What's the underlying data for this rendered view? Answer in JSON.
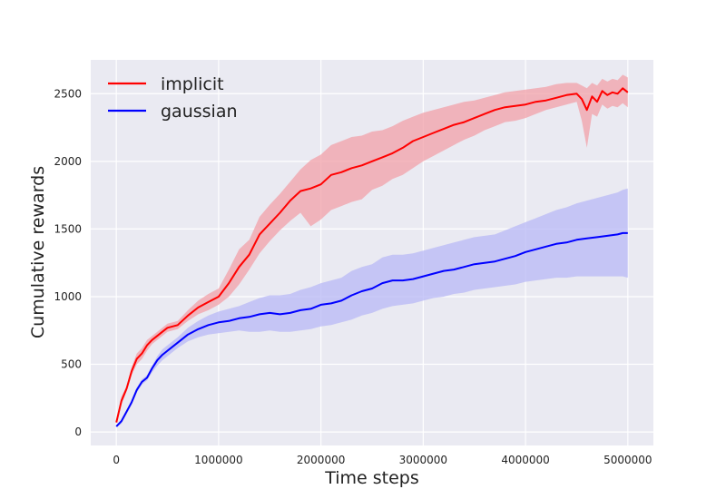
{
  "chart_data": {
    "type": "line",
    "title": "",
    "xlabel": "Time steps",
    "ylabel": "Cumulative rewards",
    "xlim": [
      -250000,
      5250000
    ],
    "ylim": [
      -100,
      2750
    ],
    "xticks": [
      0,
      1000000,
      2000000,
      3000000,
      4000000,
      5000000
    ],
    "xtick_labels": [
      "0",
      "1000000",
      "2000000",
      "3000000",
      "4000000",
      "5000000"
    ],
    "yticks": [
      0,
      500,
      1000,
      1500,
      2000,
      2500
    ],
    "ytick_labels": [
      "0",
      "500",
      "1000",
      "1500",
      "2000",
      "2500"
    ],
    "grid": true,
    "legend_position": "upper-left",
    "series": [
      {
        "name": "implicit",
        "color": "#ff0000",
        "band_color": "#f2a0a8",
        "x": [
          0,
          50000,
          100000,
          150000,
          200000,
          250000,
          300000,
          350000,
          400000,
          450000,
          500000,
          600000,
          700000,
          800000,
          900000,
          1000000,
          1100000,
          1200000,
          1300000,
          1400000,
          1500000,
          1600000,
          1700000,
          1800000,
          1900000,
          2000000,
          2100000,
          2200000,
          2300000,
          2400000,
          2500000,
          2600000,
          2700000,
          2800000,
          2900000,
          3000000,
          3100000,
          3200000,
          3300000,
          3400000,
          3500000,
          3600000,
          3700000,
          3800000,
          3900000,
          4000000,
          4100000,
          4200000,
          4300000,
          4400000,
          4500000,
          4550000,
          4600000,
          4650000,
          4700000,
          4750000,
          4800000,
          4850000,
          4900000,
          4950000,
          5000000
        ],
        "y": [
          70,
          230,
          320,
          450,
          540,
          580,
          640,
          680,
          710,
          740,
          770,
          790,
          860,
          920,
          960,
          1000,
          1100,
          1220,
          1310,
          1460,
          1540,
          1620,
          1710,
          1780,
          1800,
          1830,
          1900,
          1920,
          1950,
          1970,
          2000,
          2030,
          2060,
          2100,
          2150,
          2180,
          2210,
          2240,
          2270,
          2290,
          2320,
          2350,
          2380,
          2400,
          2410,
          2420,
          2440,
          2450,
          2470,
          2490,
          2500,
          2460,
          2380,
          2480,
          2440,
          2520,
          2490,
          2510,
          2500,
          2540,
          2510
        ],
        "lower": [
          70,
          200,
          300,
          420,
          500,
          540,
          600,
          650,
          680,
          710,
          740,
          760,
          820,
          870,
          900,
          940,
          1000,
          1090,
          1200,
          1320,
          1410,
          1490,
          1560,
          1620,
          1520,
          1570,
          1640,
          1670,
          1700,
          1720,
          1790,
          1820,
          1870,
          1900,
          1950,
          2000,
          2040,
          2080,
          2120,
          2160,
          2190,
          2230,
          2260,
          2290,
          2300,
          2320,
          2350,
          2380,
          2400,
          2420,
          2440,
          2300,
          2100,
          2350,
          2330,
          2420,
          2390,
          2410,
          2400,
          2430,
          2400
        ],
        "upper": [
          70,
          260,
          340,
          480,
          580,
          620,
          680,
          710,
          740,
          770,
          800,
          820,
          900,
          970,
          1020,
          1060,
          1200,
          1350,
          1420,
          1590,
          1680,
          1760,
          1850,
          1940,
          2010,
          2050,
          2120,
          2150,
          2180,
          2190,
          2220,
          2230,
          2260,
          2300,
          2330,
          2360,
          2380,
          2400,
          2420,
          2440,
          2450,
          2470,
          2490,
          2510,
          2520,
          2530,
          2540,
          2550,
          2570,
          2580,
          2580,
          2560,
          2540,
          2580,
          2560,
          2610,
          2590,
          2610,
          2600,
          2640,
          2620
        ]
      },
      {
        "name": "gaussian",
        "color": "#0000ff",
        "band_color": "#b8b8f5",
        "x": [
          0,
          50000,
          100000,
          150000,
          200000,
          250000,
          300000,
          350000,
          400000,
          450000,
          500000,
          600000,
          700000,
          800000,
          900000,
          1000000,
          1100000,
          1200000,
          1300000,
          1400000,
          1500000,
          1600000,
          1700000,
          1800000,
          1900000,
          2000000,
          2100000,
          2200000,
          2300000,
          2400000,
          2500000,
          2600000,
          2700000,
          2800000,
          2900000,
          3000000,
          3100000,
          3200000,
          3300000,
          3400000,
          3500000,
          3600000,
          3700000,
          3800000,
          3900000,
          4000000,
          4100000,
          4200000,
          4300000,
          4400000,
          4500000,
          4600000,
          4700000,
          4800000,
          4900000,
          4950000,
          5000000
        ],
        "y": [
          40,
          80,
          150,
          220,
          310,
          370,
          400,
          470,
          530,
          570,
          600,
          660,
          720,
          760,
          790,
          810,
          820,
          840,
          850,
          870,
          880,
          870,
          880,
          900,
          910,
          940,
          950,
          970,
          1010,
          1040,
          1060,
          1100,
          1120,
          1120,
          1130,
          1150,
          1170,
          1190,
          1200,
          1220,
          1240,
          1250,
          1260,
          1280,
          1300,
          1330,
          1350,
          1370,
          1390,
          1400,
          1420,
          1430,
          1440,
          1450,
          1460,
          1470,
          1470
        ],
        "lower": [
          40,
          60,
          130,
          200,
          290,
          350,
          380,
          440,
          490,
          530,
          560,
          620,
          670,
          700,
          720,
          730,
          740,
          750,
          740,
          740,
          750,
          740,
          740,
          750,
          760,
          780,
          790,
          810,
          830,
          860,
          880,
          910,
          930,
          940,
          950,
          970,
          990,
          1000,
          1020,
          1030,
          1050,
          1060,
          1070,
          1080,
          1090,
          1110,
          1120,
          1130,
          1140,
          1140,
          1150,
          1150,
          1150,
          1150,
          1150,
          1150,
          1140
        ],
        "upper": [
          40,
          90,
          160,
          240,
          330,
          390,
          420,
          490,
          560,
          610,
          640,
          700,
          770,
          820,
          860,
          890,
          910,
          930,
          960,
          990,
          1010,
          1010,
          1020,
          1050,
          1070,
          1100,
          1120,
          1140,
          1190,
          1220,
          1240,
          1290,
          1310,
          1310,
          1320,
          1340,
          1360,
          1380,
          1400,
          1420,
          1440,
          1450,
          1460,
          1490,
          1520,
          1550,
          1580,
          1610,
          1640,
          1660,
          1690,
          1710,
          1730,
          1750,
          1770,
          1790,
          1800
        ]
      }
    ]
  }
}
